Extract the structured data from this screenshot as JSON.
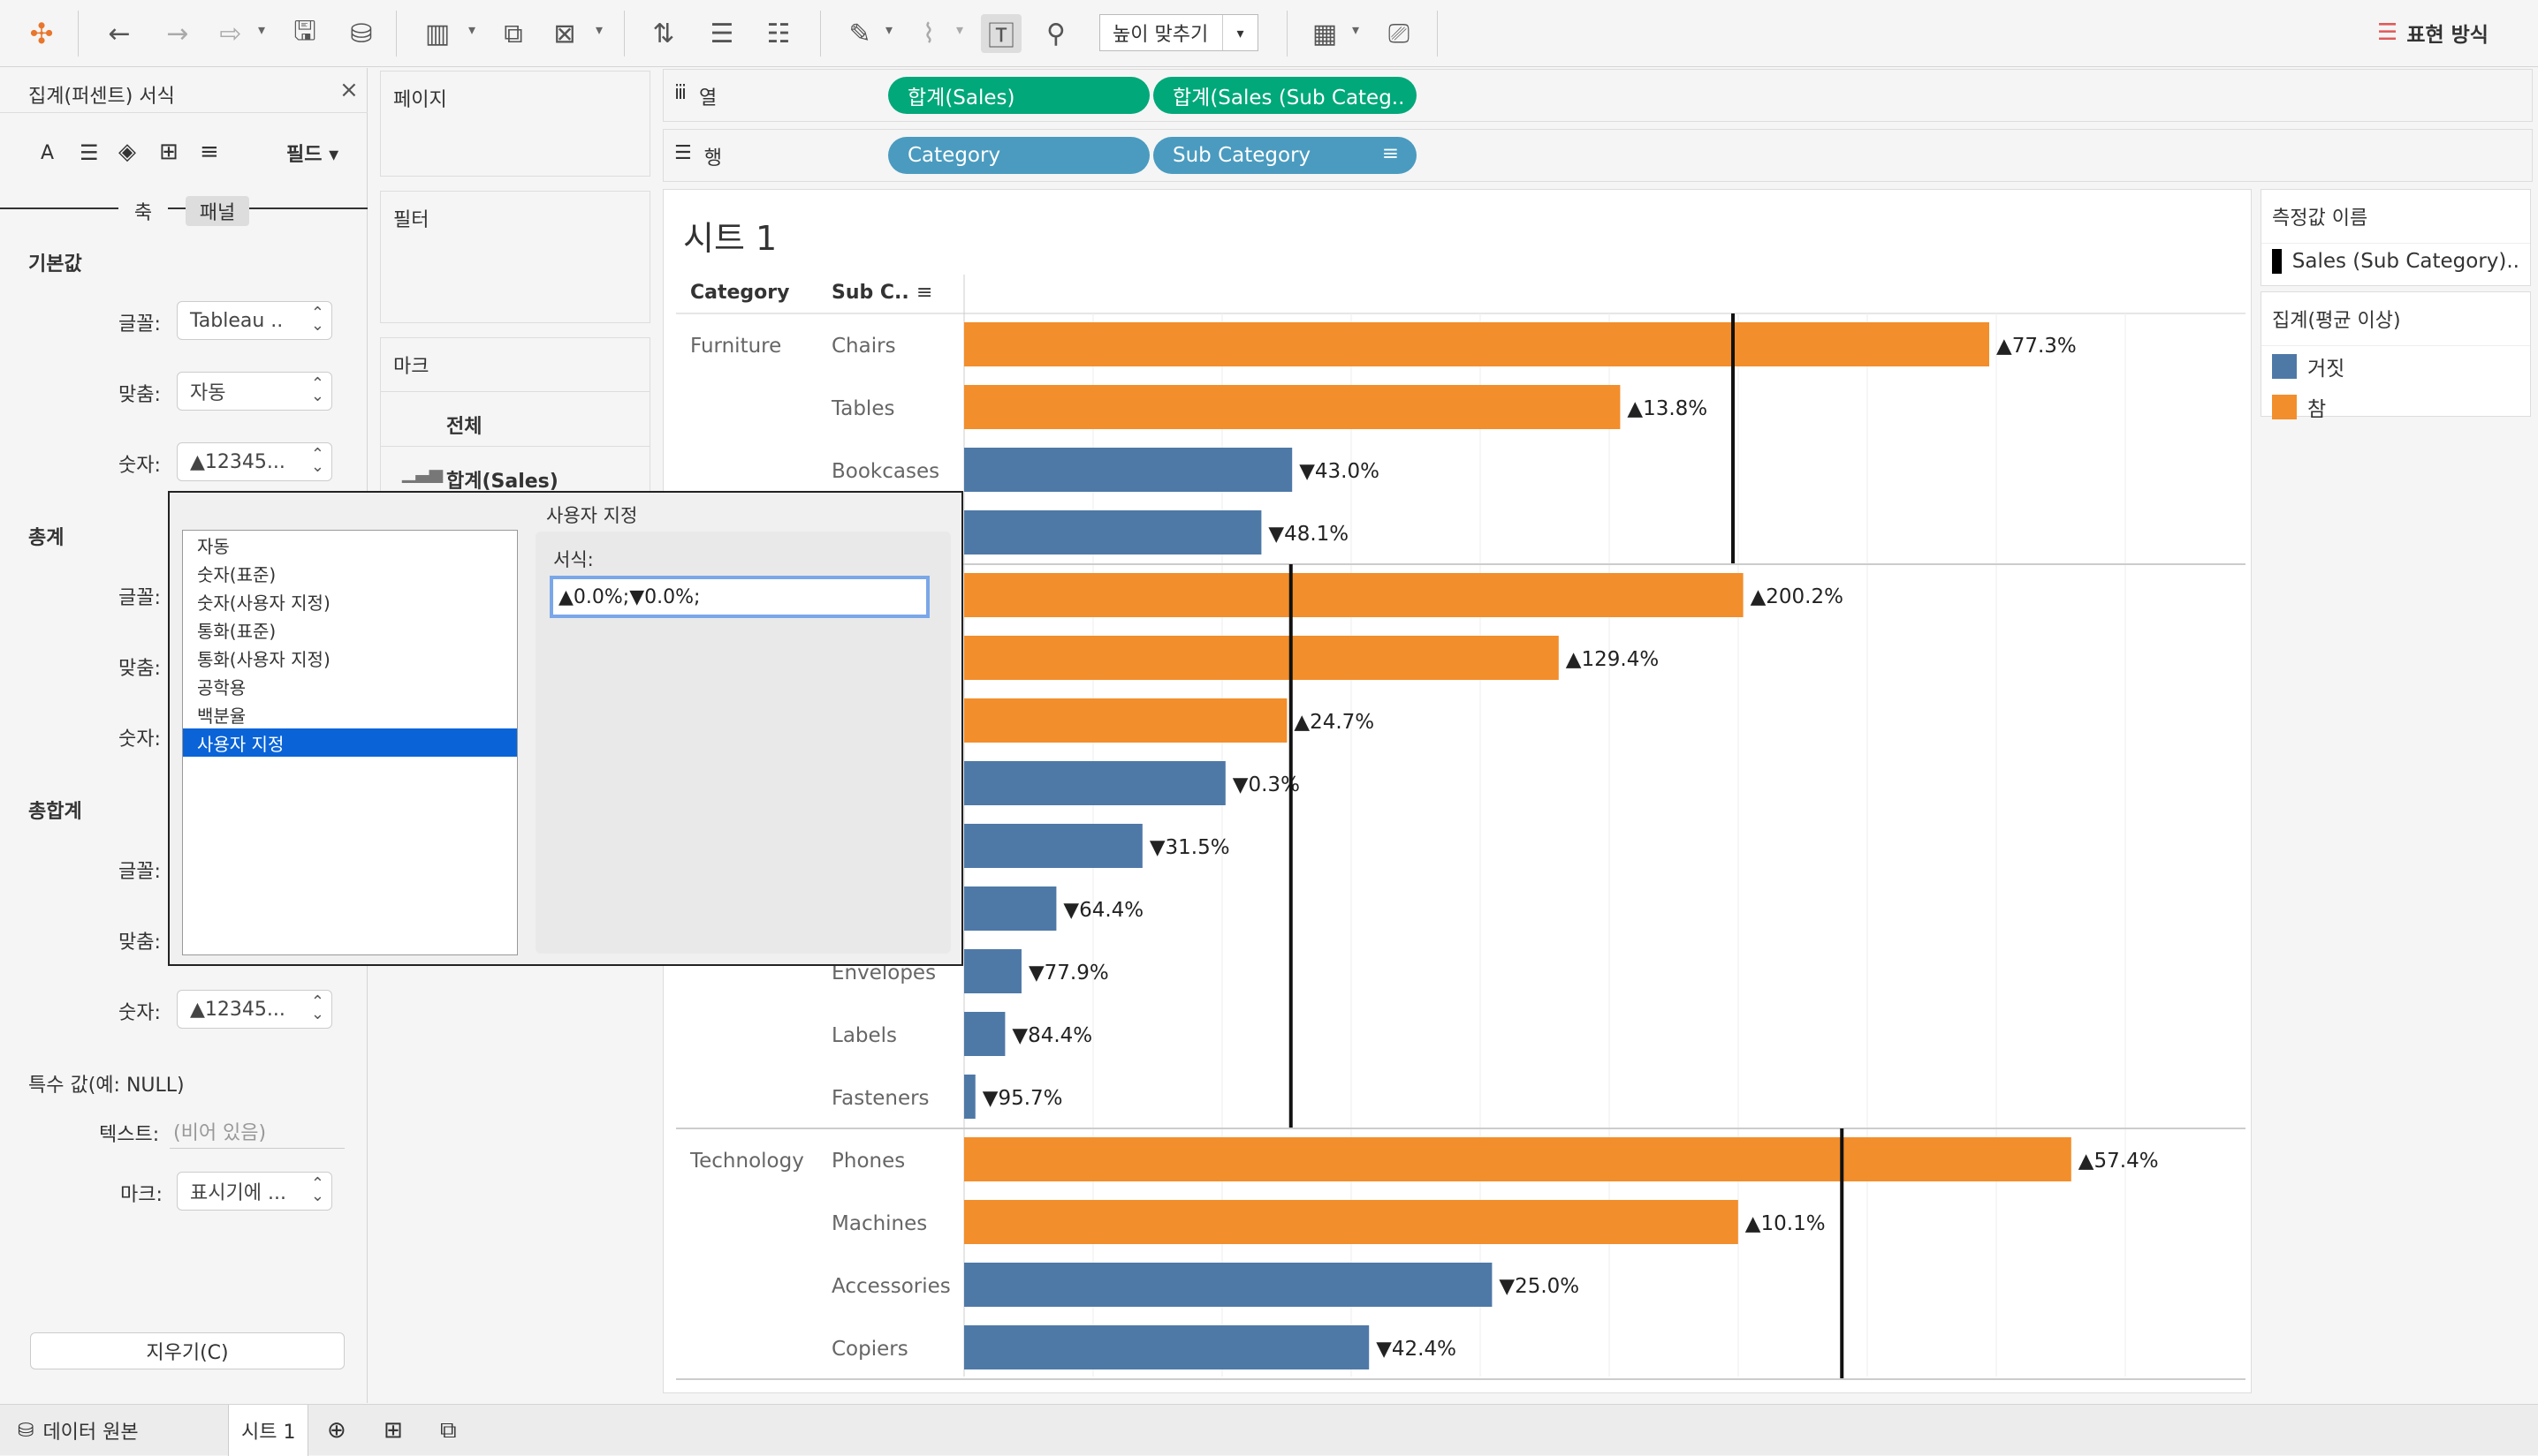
{
  "toolbar": {
    "fit_label": "높이 맞추기",
    "showme_label": "표현 방식",
    "icons": [
      "tableau-logo",
      "undo",
      "redo",
      "replay",
      "save",
      "new-datasource",
      "new-worksheet",
      "duplicate",
      "clear-sheet",
      "swap",
      "sort-asc",
      "sort-desc",
      "highlight",
      "group",
      "labels",
      "fix-axes",
      "fit",
      "show-cards",
      "presentation"
    ]
  },
  "format_pane": {
    "title": "집계(퍼센트) 서식",
    "fields_label": "필드",
    "tab_axis": "축",
    "tab_pane": "패널",
    "section_default": "기본값",
    "section_totals": "총계",
    "section_grand_totals": "총합계",
    "label_font": "글꼴:",
    "label_align": "맞춤:",
    "label_numbers": "숫자:",
    "font_value": "Tableau ..",
    "align_value": "자동",
    "numbers_value": "▲12345...",
    "special_values_title": "특수 값(예: NULL)",
    "text_label": "텍스트:",
    "text_placeholder": "(비어 있음)",
    "marks_label": "마크:",
    "marks_value": "표시기에 ...",
    "clear_label": "지우기(C)"
  },
  "cards": {
    "pages": "페이지",
    "filters": "필터",
    "marks": "마크",
    "marks_all": "전체",
    "marks_sum_sales": "합계(Sales)"
  },
  "shelves": {
    "columns_label": "열",
    "rows_label": "행",
    "columns_pills": [
      "합계(Sales)",
      "합계(Sales (Sub Categ.."
    ],
    "rows_pills": [
      "Category",
      "Sub Category"
    ]
  },
  "sheet": {
    "title": "시트 1",
    "header_category": "Category",
    "header_subcategory": "Sub C.."
  },
  "legends": {
    "measure_names_title": "측정값 이름",
    "measure_names_item": "Sales (Sub Category)..",
    "agg_title": "집계(평균 이상)",
    "false_label": "거짓",
    "true_label": "참"
  },
  "dialog": {
    "title": "사용자 지정",
    "options": [
      "자동",
      "숫자(표준)",
      "숫자(사용자 지정)",
      "통화(표준)",
      "통화(사용자 지정)",
      "공학용",
      "백분율",
      "사용자 지정"
    ],
    "selected_index": 7,
    "format_label": "서식:",
    "format_value": "▲0.0%;▼0.0%;"
  },
  "bottom_tabs": {
    "datasource": "데이터 원본",
    "sheet1": "시트 1"
  },
  "colors": {
    "above_avg": "#f28e2b",
    "below_avg": "#4e79a7",
    "pill_green": "#00a87a",
    "pill_blue": "#4a9bbf"
  },
  "chart_data": {
    "type": "bar",
    "orientation": "horizontal",
    "groups": [
      {
        "category": "Furniture",
        "reference_line_pct": 0.6,
        "rows": [
          {
            "sub": "Chairs",
            "value": 1.0,
            "label": "▲77.3%",
            "above": true
          },
          {
            "sub": "Tables",
            "value": 0.64,
            "label": "▲13.8%",
            "above": true
          },
          {
            "sub": "Bookcases",
            "value": 0.32,
            "label": "▼43.0%",
            "above": false
          },
          {
            "sub": "",
            "value": 0.29,
            "label": "▼48.1%",
            "above": false
          }
        ]
      },
      {
        "category": "",
        "reference_line_pct": 0.255,
        "rows": [
          {
            "sub": "",
            "value": 0.76,
            "label": "▲200.2%",
            "above": true
          },
          {
            "sub": "",
            "value": 0.58,
            "label": "▲129.4%",
            "above": true
          },
          {
            "sub": "",
            "value": 0.315,
            "label": "▲24.7%",
            "above": true
          },
          {
            "sub": "",
            "value": 0.255,
            "label": "▼0.3%",
            "above": false
          },
          {
            "sub": "",
            "value": 0.174,
            "label": "▼31.5%",
            "above": false
          },
          {
            "sub": "",
            "value": 0.09,
            "label": "▼64.4%",
            "above": false
          },
          {
            "sub": "Envelopes",
            "value": 0.056,
            "label": "▼77.9%",
            "above": false
          },
          {
            "sub": "Labels",
            "value": 0.04,
            "label": "▼84.4%",
            "above": false
          },
          {
            "sub": "Fasteners",
            "value": 0.011,
            "label": "▼95.7%",
            "above": false
          }
        ]
      },
      {
        "category": "Technology",
        "reference_line_pct": 0.685,
        "rows": [
          {
            "sub": "Phones",
            "value": 1.08,
            "label": "▲57.4%",
            "above": true
          },
          {
            "sub": "Machines",
            "value": 0.755,
            "label": "▲10.1%",
            "above": true
          },
          {
            "sub": "Accessories",
            "value": 0.515,
            "label": "▼25.0%",
            "above": false
          },
          {
            "sub": "Copiers",
            "value": 0.395,
            "label": "▼42.4%",
            "above": false
          }
        ]
      }
    ]
  }
}
